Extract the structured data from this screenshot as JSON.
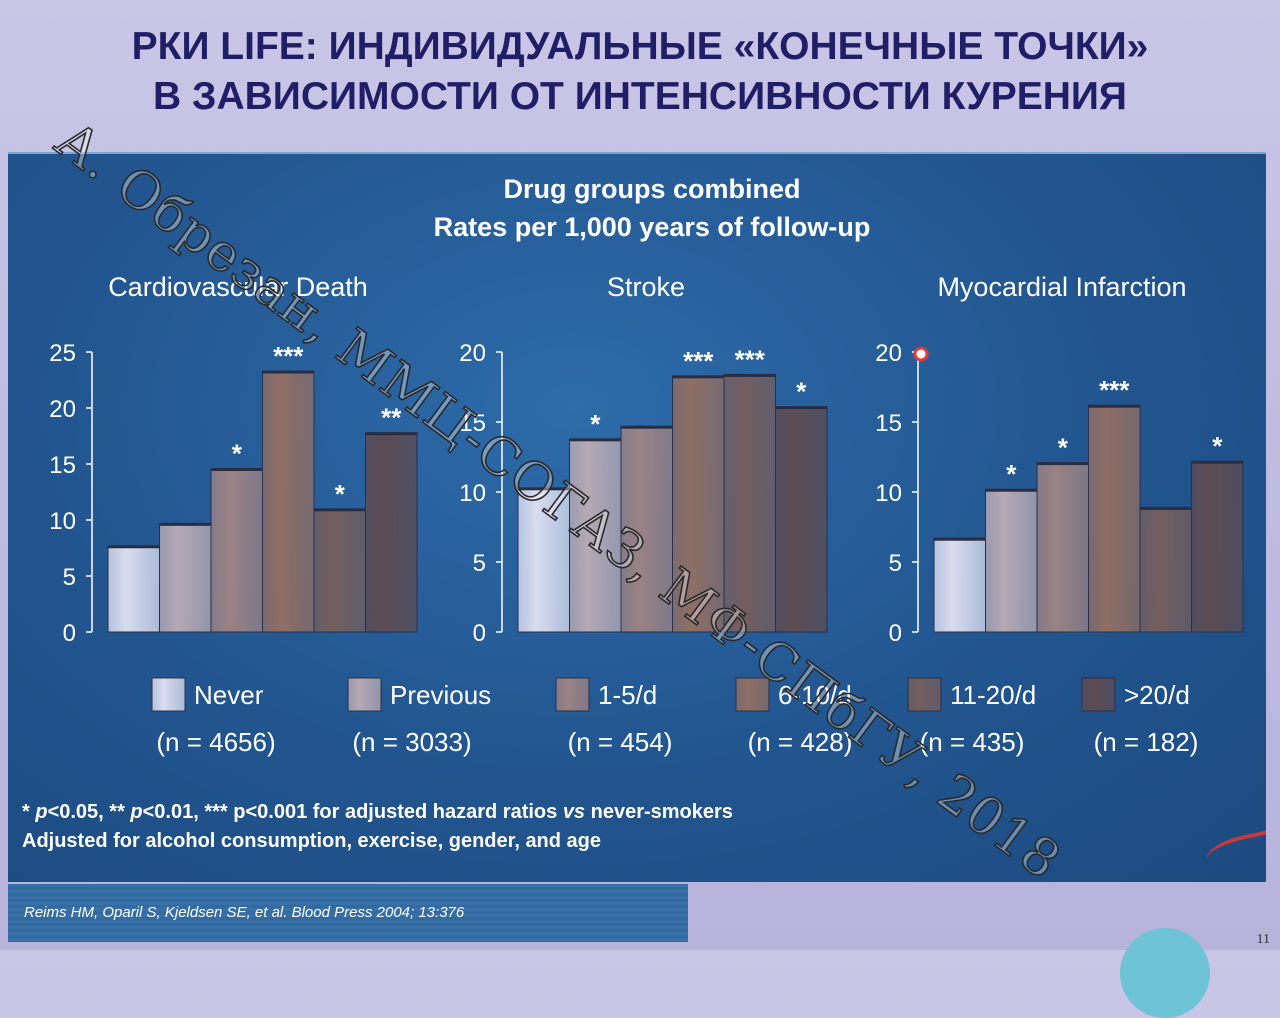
{
  "slide": {
    "title_line1": "РКИ LIFE: ИНДИВИДУАЛЬНЫЕ «КОНЕЧНЫЕ ТОЧКИ»",
    "title_line2": "В ЗАВИСИМОСТИ ОТ ИНТЕНСИВНОСТИ КУРЕНИЯ",
    "subtitle_line1": "Drug groups combined",
    "subtitle_line2": "Rates per 1,000 years of follow-up",
    "footnote_line1_parts": [
      "* ",
      "p",
      "<0.05, ** ",
      "p",
      "<0.01, *** p<0.001 for adjusted hazard ratios ",
      "vs",
      " never-smokers"
    ],
    "footnote_line2": "Adjusted for alcohol consumption, exercise, gender, and age",
    "citation": "Reims HM, Oparil S, Kjeldsen SE, et al. Blood Press 2004; 13:376",
    "page_number": "11",
    "watermark": "А. Обрезан, ММЦ-СОГАЗ, МФ-СПбГУ, 2018"
  },
  "legend": [
    {
      "label": "Never",
      "n": "(n = 4656)",
      "color": "#d9dcef"
    },
    {
      "label": "Previous",
      "n": "(n = 3033)",
      "color": "#b6a9b4"
    },
    {
      "label": "1-5/d",
      "n": "(n = 454)",
      "color": "#9a8284"
    },
    {
      "label": "6-10/d",
      "n": "(n = 428)",
      "color": "#8f6e65"
    },
    {
      "label": "11-20/d",
      "n": "(n = 435)",
      "color": "#735e5e"
    },
    {
      "label": ">20/d",
      "n": "(n = 182)",
      "color": "#5c4b52"
    }
  ],
  "chart_data": [
    {
      "type": "bar",
      "title": "Cardiovascular Death",
      "categories": [
        "Never",
        "Previous",
        "1-5/d",
        "6-10/d",
        "11-20/d",
        ">20/d"
      ],
      "values": [
        7.7,
        9.7,
        14.6,
        23.3,
        11.0,
        17.8
      ],
      "annotations": [
        "",
        "",
        "*",
        "***",
        "*",
        "**"
      ],
      "ylim": [
        0,
        25
      ],
      "yticks": [
        0,
        5,
        10,
        15,
        20,
        25
      ]
    },
    {
      "type": "bar",
      "title": "Stroke",
      "categories": [
        "Never",
        "Previous",
        "1-5/d",
        "6-10/d",
        "11-20/d",
        ">20/d"
      ],
      "values": [
        10.3,
        13.8,
        14.7,
        18.3,
        18.4,
        16.1
      ],
      "annotations": [
        "",
        "*",
        "",
        "***",
        "***",
        "*"
      ],
      "ylim": [
        0,
        20
      ],
      "yticks": [
        0,
        5,
        10,
        15,
        20
      ]
    },
    {
      "type": "bar",
      "title": "Myocardial Infarction",
      "categories": [
        "Never",
        "Previous",
        "1-5/d",
        "6-10/d",
        "11-20/d",
        ">20/d"
      ],
      "values": [
        6.7,
        10.2,
        12.1,
        16.2,
        8.9,
        12.2
      ],
      "annotations": [
        "",
        "*",
        "*",
        "***",
        "",
        "*"
      ],
      "ylim": [
        0,
        20
      ],
      "yticks": [
        0,
        5,
        10,
        15,
        20
      ]
    }
  ]
}
